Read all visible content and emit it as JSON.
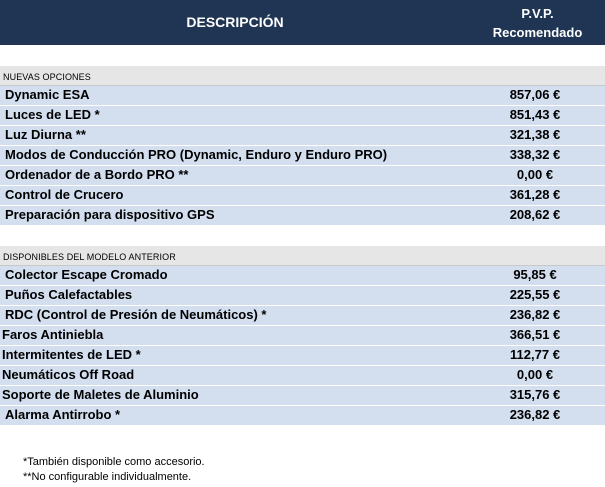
{
  "header": {
    "description": "DESCRIPCIÓN",
    "pvp_line1": "P.V.P.",
    "pvp_line2": "Recomendado"
  },
  "rows": [
    {
      "type": "blank"
    },
    {
      "type": "section",
      "label": "NUEVAS OPCIONES"
    },
    {
      "type": "item",
      "label": "Dynamic ESA",
      "price": "857,06 €"
    },
    {
      "type": "item",
      "label": "Luces de LED *",
      "price": "851,43 €"
    },
    {
      "type": "item",
      "label": "Luz Diurna **",
      "price": "321,38 €"
    },
    {
      "type": "item",
      "label": "Modos de Conducción PRO (Dynamic, Enduro y Enduro PRO)",
      "price": "338,32 €"
    },
    {
      "type": "item",
      "label": "Ordenador de a Bordo PRO **",
      "price": "0,00 €"
    },
    {
      "type": "item",
      "label": "Control de Crucero",
      "price": "361,28 €"
    },
    {
      "type": "item",
      "label": "Preparación para dispositivo GPS",
      "price": "208,62 €"
    },
    {
      "type": "blank"
    },
    {
      "type": "section",
      "label": "DISPONIBLES DEL MODELO ANTERIOR"
    },
    {
      "type": "item",
      "label": "Colector Escape Cromado",
      "price": "95,85 €"
    },
    {
      "type": "item",
      "label": "Puños Calefactables",
      "price": "225,55 €"
    },
    {
      "type": "item",
      "label": "RDC (Control de Presión de Neumáticos) *",
      "price": "236,82 €"
    },
    {
      "type": "item",
      "label": "Faros Antiniebla",
      "price": "366,51 €"
    },
    {
      "type": "item",
      "label": "Intermitentes de LED *",
      "price": "112,77 €"
    },
    {
      "type": "item",
      "label": "Neumáticos Off Road",
      "price": "0,00 €"
    },
    {
      "type": "item",
      "label": "Soporte de Maletes de Aluminio",
      "price": "315,76 €"
    },
    {
      "type": "item",
      "label": "Alarma Antirrobo *",
      "price": "236,82 €"
    }
  ],
  "notes": [
    "*También disponible como accesorio.",
    "**No configurable individualmente."
  ],
  "colors": {
    "header_bg": "#1f3553",
    "item_bg": "#d3deef",
    "section_bg": "#e6e6e6"
  }
}
